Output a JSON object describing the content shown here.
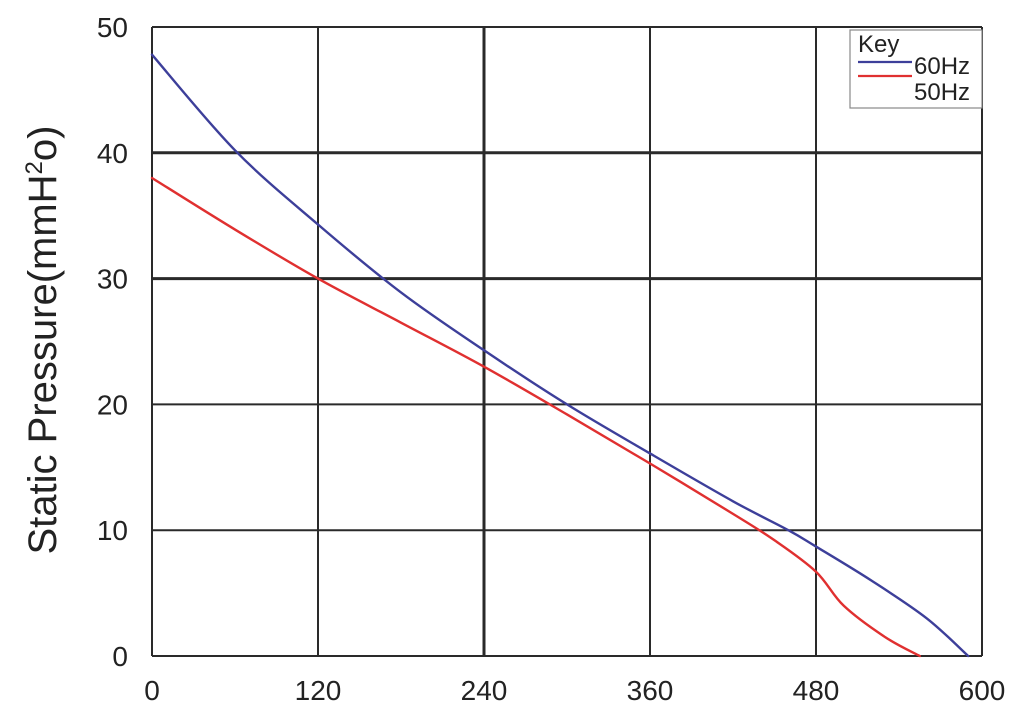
{
  "chart_data": {
    "type": "line",
    "ylabel_main": "Static Pressure(mmH",
    "ylabel_sup": "2",
    "ylabel_tail": "o)",
    "xlim": [
      0,
      600
    ],
    "ylim": [
      0,
      50
    ],
    "xticks": [
      "0",
      "120",
      "240",
      "360",
      "480",
      "600"
    ],
    "yticks": [
      "0",
      "10",
      "20",
      "30",
      "40",
      "50"
    ],
    "grid": true,
    "legend": {
      "title": "Key",
      "placement": "top-right"
    },
    "series": [
      {
        "name": "60Hz",
        "color": "#3d3f9a",
        "x": [
          0,
          60,
          120,
          180,
          240,
          300,
          360,
          420,
          460,
          480,
          520,
          560,
          590
        ],
        "y": [
          47.8,
          40.2,
          34.3,
          28.9,
          24.3,
          20.0,
          16.1,
          12.3,
          10.0,
          8.7,
          6.0,
          3.0,
          0
        ]
      },
      {
        "name": "50Hz",
        "color": "#e03030",
        "x": [
          0,
          60,
          120,
          180,
          240,
          300,
          360,
          420,
          450,
          480,
          500,
          530,
          555
        ],
        "y": [
          38.0,
          33.9,
          30.0,
          26.5,
          23.0,
          19.2,
          15.3,
          11.3,
          9.2,
          6.7,
          4.0,
          1.5,
          0
        ]
      }
    ]
  }
}
